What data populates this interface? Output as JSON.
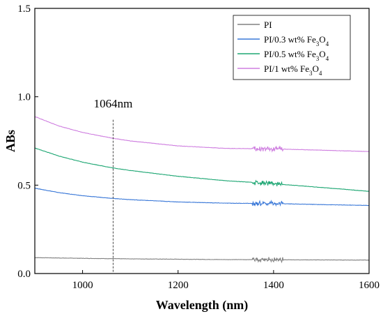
{
  "chart_data": {
    "type": "line",
    "title": "",
    "xlabel": "Wavelength (nm)",
    "ylabel": "ABs",
    "xlim": [
      900,
      1600
    ],
    "ylim": [
      0.0,
      1.5
    ],
    "x_ticks": [
      1000,
      1200,
      1400,
      1600
    ],
    "y_ticks": [
      0.0,
      0.5,
      1.0,
      1.5
    ],
    "x_tick_labels": [
      "1000",
      "1200",
      "1400",
      "1600"
    ],
    "y_tick_labels": [
      "0.0",
      "0.5",
      "1.0",
      "1.5"
    ],
    "grid": false,
    "legend_position": "top-right",
    "annotation": {
      "text": "1064nm",
      "x": 1064,
      "style": "dashed vertical line"
    },
    "noise_region": [
      1355,
      1420
    ],
    "series": [
      {
        "name": "PI",
        "legend": {
          "prefix": "PI",
          "formula": ""
        },
        "color": "#808080",
        "x": [
          900,
          1000,
          1064,
          1100,
          1200,
          1300,
          1400,
          1500,
          1600
        ],
        "y": [
          0.09,
          0.086,
          0.084,
          0.083,
          0.081,
          0.079,
          0.078,
          0.077,
          0.076
        ]
      },
      {
        "name": "PI/0.3 wt% Fe3O4",
        "legend": {
          "prefix": "PI/0.3 wt% Fe",
          "formula": "3O4"
        },
        "color": "#3a78d8",
        "x": [
          900,
          950,
          1000,
          1064,
          1100,
          1200,
          1300,
          1400,
          1500,
          1600
        ],
        "y": [
          0.483,
          0.458,
          0.44,
          0.425,
          0.418,
          0.405,
          0.398,
          0.396,
          0.39,
          0.385
        ]
      },
      {
        "name": "PI/0.5 wt% Fe3O4",
        "legend": {
          "prefix": "PI/0.5 wt% Fe",
          "formula": "3O4"
        },
        "color": "#1fa774",
        "x": [
          900,
          950,
          1000,
          1064,
          1100,
          1200,
          1300,
          1400,
          1500,
          1600
        ],
        "y": [
          0.71,
          0.665,
          0.63,
          0.597,
          0.583,
          0.55,
          0.525,
          0.508,
          0.487,
          0.465
        ]
      },
      {
        "name": "PI/1 wt% Fe3O4",
        "legend": {
          "prefix": "PI/1 wt% Fe",
          "formula": "3O4"
        },
        "color": "#cf7fe0",
        "x": [
          900,
          950,
          1000,
          1064,
          1100,
          1200,
          1300,
          1400,
          1500,
          1600
        ],
        "y": [
          0.888,
          0.835,
          0.798,
          0.765,
          0.75,
          0.722,
          0.708,
          0.705,
          0.698,
          0.69
        ]
      }
    ]
  }
}
